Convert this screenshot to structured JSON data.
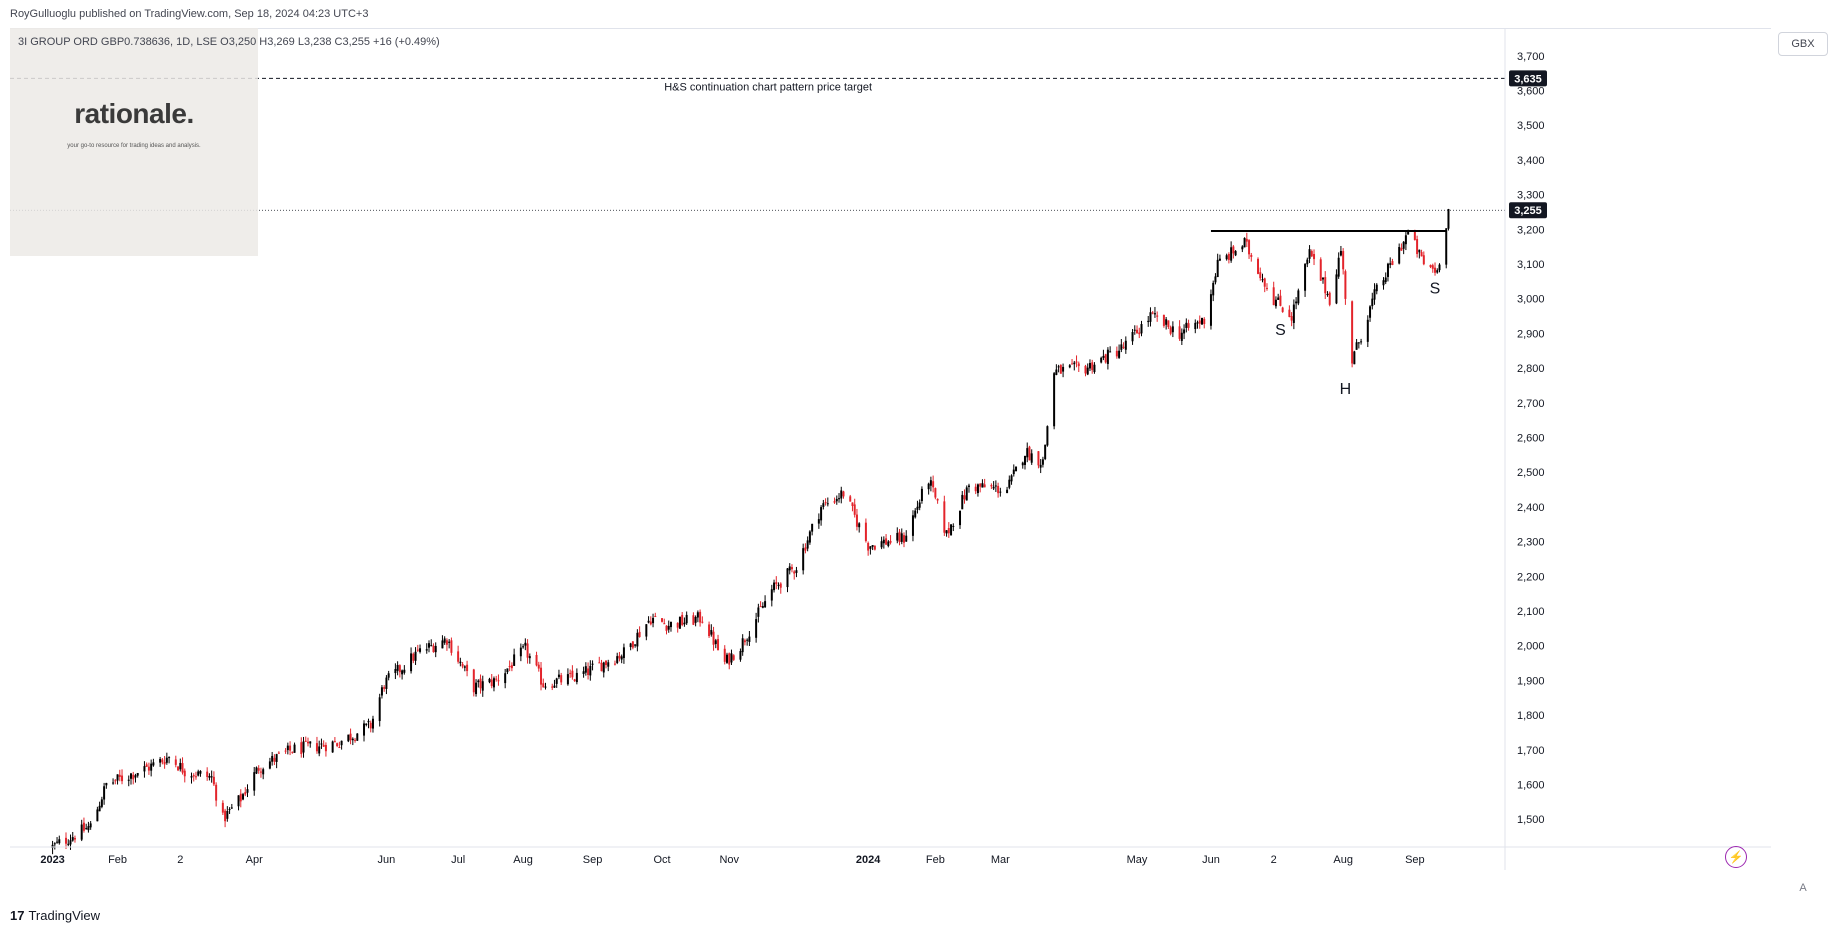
{
  "publisher": "RoyGulluoglu published on TradingView.com, Sep 18, 2024 04:23 UTC+3",
  "symbol_line": "3I GROUP ORD GBP0.738636, 1D, LSE  O3,250  H3,269  L3,238  C3,255  +16 (+0.49%)",
  "logo": {
    "word": "rationale.",
    "tagline": "your go-to resource for trading ideas and analysis."
  },
  "currency": "GBX",
  "footer_brand": "TradingView",
  "footer_mark": "17",
  "auto_label": "A",
  "flash_icon": "⚡",
  "colors": {
    "up": "#000000",
    "down": "#e3242b",
    "label_bg": "#131722",
    "label_text": "#ffffff"
  },
  "chart_data": {
    "type": "candlestick",
    "x_tick_labels": [
      "2023",
      "Feb",
      "2",
      "Apr",
      "Jun",
      "Jul",
      "Aug",
      "Sep",
      "Oct",
      "Nov",
      "2024",
      "Feb",
      "Mar",
      "May",
      "Jun",
      "2",
      "Aug",
      "Sep"
    ],
    "x_tick_dates": [
      "2023-01-03",
      "2023-02-01",
      "2023-03-01",
      "2023-04-03",
      "2023-06-01",
      "2023-07-03",
      "2023-08-01",
      "2023-09-01",
      "2023-10-02",
      "2023-11-01",
      "2024-01-02",
      "2024-02-01",
      "2024-03-01",
      "2024-05-01",
      "2024-06-03",
      "2024-07-01",
      "2024-08-01",
      "2024-09-02"
    ],
    "y_ticks": [
      1500,
      1600,
      1700,
      1800,
      1900,
      2000,
      2100,
      2200,
      2300,
      2400,
      2500,
      2600,
      2700,
      2800,
      2900,
      3000,
      3100,
      3200,
      3300,
      3400,
      3500,
      3600,
      3700
    ],
    "ylim": [
      1420,
      3760
    ],
    "x_range": [
      "2022-12-15",
      "2024-10-10"
    ],
    "price_path": [
      [
        "2023-01-03",
        1420
      ],
      [
        "2023-01-20",
        1480
      ],
      [
        "2023-01-27",
        1600
      ],
      [
        "2023-02-15",
        1650
      ],
      [
        "2023-02-24",
        1680
      ],
      [
        "2023-03-03",
        1640
      ],
      [
        "2023-03-15",
        1620
      ],
      [
        "2023-03-20",
        1500
      ],
      [
        "2023-03-28",
        1560
      ],
      [
        "2023-04-05",
        1650
      ],
      [
        "2023-04-20",
        1700
      ],
      [
        "2023-05-10",
        1720
      ],
      [
        "2023-05-25",
        1770
      ],
      [
        "2023-05-31",
        1890
      ],
      [
        "2023-06-15",
        1980
      ],
      [
        "2023-06-28",
        2020
      ],
      [
        "2023-07-10",
        1880
      ],
      [
        "2023-07-20",
        1900
      ],
      [
        "2023-08-02",
        1990
      ],
      [
        "2023-08-10",
        1890
      ],
      [
        "2023-08-25",
        1910
      ],
      [
        "2023-09-15",
        1980
      ],
      [
        "2023-09-27",
        2080
      ],
      [
        "2023-10-05",
        2060
      ],
      [
        "2023-10-20",
        2080
      ],
      [
        "2023-10-30",
        1950
      ],
      [
        "2023-11-06",
        2000
      ],
      [
        "2023-11-20",
        2160
      ],
      [
        "2023-12-01",
        2230
      ],
      [
        "2023-12-12",
        2400
      ],
      [
        "2023-12-22",
        2440
      ],
      [
        "2024-01-02",
        2290
      ],
      [
        "2024-01-18",
        2310
      ],
      [
        "2024-01-29",
        2480
      ],
      [
        "2024-02-06",
        2320
      ],
      [
        "2024-02-16",
        2460
      ],
      [
        "2024-03-04",
        2450
      ],
      [
        "2024-03-12",
        2560
      ],
      [
        "2024-03-20",
        2530
      ],
      [
        "2024-03-25",
        2790
      ],
      [
        "2024-04-08",
        2800
      ],
      [
        "2024-04-25",
        2860
      ],
      [
        "2024-05-07",
        2950
      ],
      [
        "2024-05-20",
        2900
      ],
      [
        "2024-05-31",
        2940
      ],
      [
        "2024-06-06",
        3100
      ],
      [
        "2024-06-18",
        3160
      ],
      [
        "2024-07-01",
        3000
      ],
      [
        "2024-07-09",
        2950
      ],
      [
        "2024-07-17",
        3130
      ],
      [
        "2024-07-26",
        3000
      ],
      [
        "2024-07-31",
        3140
      ],
      [
        "2024-08-05",
        2820
      ],
      [
        "2024-08-15",
        3010
      ],
      [
        "2024-08-30",
        3190
      ],
      [
        "2024-09-06",
        3100
      ],
      [
        "2024-09-12",
        3080
      ],
      [
        "2024-09-17",
        3255
      ]
    ],
    "neckline": {
      "from": "2024-06-03",
      "to": "2024-09-16",
      "price": 3195
    },
    "target_line": {
      "price": 3635,
      "label": "H&S continuation chart pattern price target",
      "label_date": "2024-01-02"
    },
    "last_price": 3255,
    "target_price_label": "3,635",
    "last_price_label": "3,255",
    "annotations": [
      {
        "text": "S",
        "date": "2024-07-04",
        "price": 2895
      },
      {
        "text": "H",
        "date": "2024-08-02",
        "price": 2725
      },
      {
        "text": "S",
        "date": "2024-09-11",
        "price": 3015
      }
    ]
  }
}
